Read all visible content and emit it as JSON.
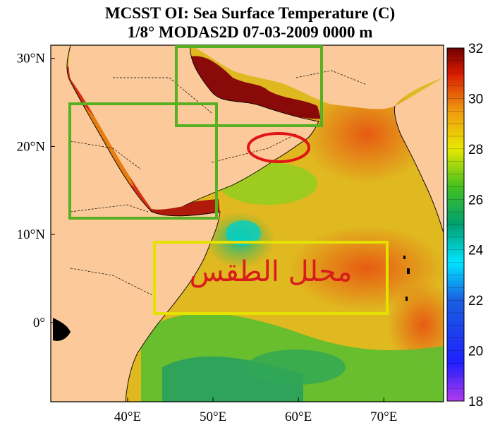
{
  "title": {
    "line1": "MCSST OI:  Sea Surface Temperature (C)",
    "line2": "1/8° MODAS2D 07-03-2009 0000 m"
  },
  "map": {
    "lon_range": [
      31,
      77
    ],
    "lat_range": [
      -9,
      31.5
    ],
    "lat_ticks": [
      {
        "value": 30,
        "label": "30°N"
      },
      {
        "value": 20,
        "label": "20°N"
      },
      {
        "value": 10,
        "label": "10°N"
      },
      {
        "value": 0,
        "label": "0°"
      }
    ],
    "lon_ticks": [
      {
        "value": 40,
        "label": "40°E"
      },
      {
        "value": 50,
        "label": "50°E"
      },
      {
        "value": 60,
        "label": "60°E"
      },
      {
        "value": 70,
        "label": "70°E"
      }
    ],
    "land_color": "#fbc99a",
    "annotation_text": "محلل الطقس"
  },
  "colorbar": {
    "min": 18,
    "max": 32,
    "labels": [
      18,
      20,
      22,
      24,
      26,
      28,
      30,
      32
    ],
    "stops": [
      {
        "value": 18,
        "color": "#b23aee"
      },
      {
        "value": 19.5,
        "color": "#2020ff"
      },
      {
        "value": 22,
        "color": "#1a5fe0"
      },
      {
        "value": 23.5,
        "color": "#00e5ff"
      },
      {
        "value": 25,
        "color": "#00a070"
      },
      {
        "value": 26.5,
        "color": "#44c020"
      },
      {
        "value": 28,
        "color": "#e8e800"
      },
      {
        "value": 29.5,
        "color": "#f09a10"
      },
      {
        "value": 31,
        "color": "#d81a00"
      },
      {
        "value": 32,
        "color": "#6e0000"
      }
    ]
  },
  "overlays": {
    "green_box_color": "#56b021",
    "yellow_box_color": "#e6e200",
    "red_ellipse_color": "#e01515"
  }
}
